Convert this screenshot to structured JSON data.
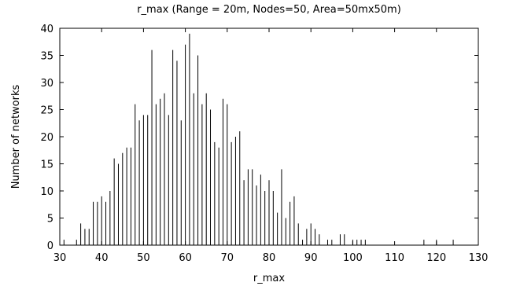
{
  "chart_data": {
    "type": "bar",
    "title": "r_max (Range = 20m, Nodes=50, Area=50mx50m)",
    "xlabel": "r_max",
    "ylabel": "Number of networks",
    "xlim": [
      30,
      130
    ],
    "ylim": [
      0,
      40
    ],
    "xticks": [
      30,
      40,
      50,
      60,
      70,
      80,
      90,
      100,
      110,
      120,
      130
    ],
    "yticks": [
      0,
      5,
      10,
      15,
      20,
      25,
      30,
      35,
      40
    ],
    "grid": false,
    "series": [
      {
        "x": [
          31,
          34,
          35,
          36,
          37,
          38,
          39,
          40,
          41,
          42,
          43,
          44,
          45,
          46,
          47,
          48,
          49,
          50,
          51,
          52,
          53,
          54,
          55,
          56,
          57,
          58,
          59,
          60,
          61,
          62,
          63,
          64,
          65,
          66,
          67,
          68,
          69,
          70,
          71,
          72,
          73,
          74,
          75,
          76,
          77,
          78,
          79,
          80,
          81,
          82,
          83,
          84,
          85,
          86,
          87,
          88,
          89,
          90,
          91,
          92,
          94,
          95,
          97,
          98,
          100,
          101,
          102,
          103,
          117,
          120,
          124
        ],
        "values": [
          1,
          1,
          4,
          3,
          3,
          8,
          8,
          9,
          8,
          10,
          16,
          15,
          17,
          18,
          18,
          26,
          23,
          24,
          24,
          36,
          26,
          27,
          28,
          24,
          36,
          34,
          23,
          37,
          39,
          28,
          35,
          26,
          28,
          25,
          19,
          18,
          27,
          26,
          19,
          20,
          21,
          12,
          14,
          14,
          11,
          13,
          10,
          12,
          10,
          6,
          14,
          5,
          8,
          9,
          4,
          1,
          3,
          4,
          3,
          2,
          1,
          1,
          2,
          2,
          1,
          1,
          1,
          1,
          1,
          1,
          1
        ]
      }
    ]
  }
}
